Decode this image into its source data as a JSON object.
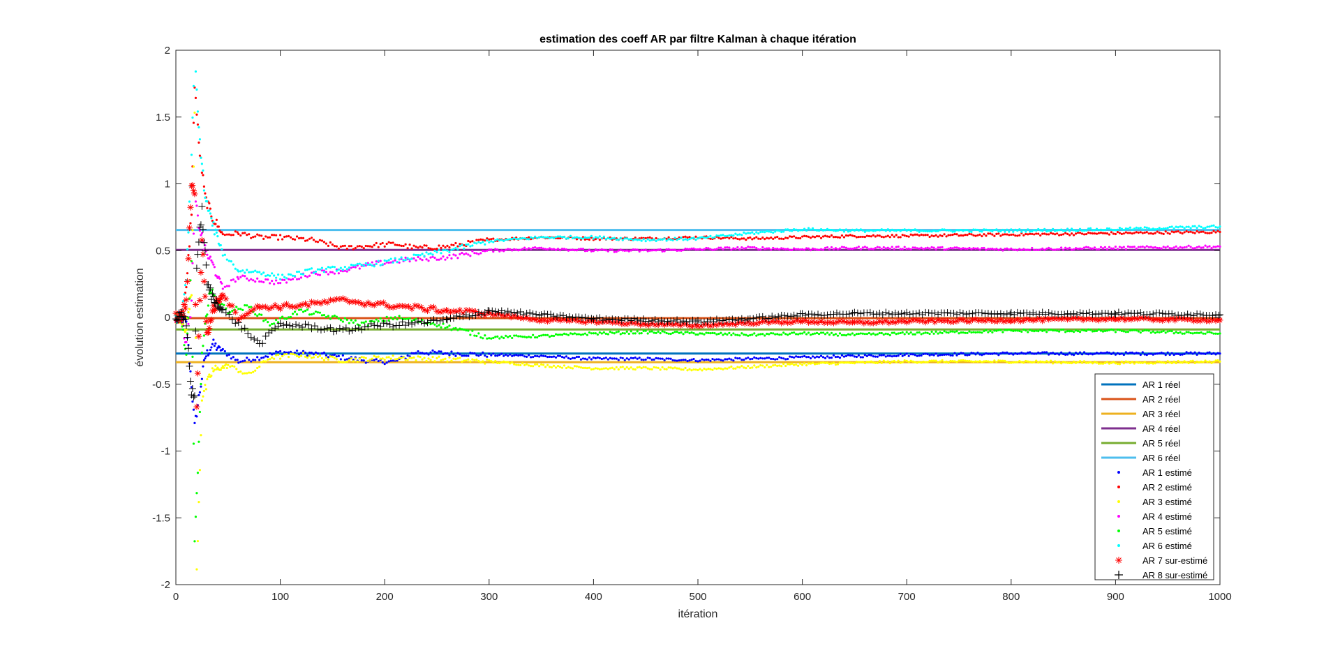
{
  "chart_data": {
    "type": "scatter",
    "title": "estimation des coeff AR par filtre Kalman à chaque itération",
    "xlabel": "itération",
    "ylabel": "évolution estimation",
    "xlim": [
      0,
      1000
    ],
    "ylim": [
      -2,
      2
    ],
    "xticks": [
      "0",
      "100",
      "200",
      "300",
      "400",
      "500",
      "600",
      "700",
      "800",
      "900",
      "1000"
    ],
    "yticks": [
      "-2",
      "-1.5",
      "-1",
      "-0.5",
      "0",
      "0.5",
      "1",
      "1.5",
      "2"
    ],
    "grid": false,
    "legend_position": "bottom-right",
    "true_series": [
      {
        "name": "AR 1 réel",
        "value": -0.27,
        "color": "#0072BD"
      },
      {
        "name": "AR 2 réel",
        "value": -0.005,
        "color": "#D95319"
      },
      {
        "name": "AR 3 réel",
        "value": -0.335,
        "color": "#EDB120"
      },
      {
        "name": "AR 4 réel",
        "value": 0.505,
        "color": "#7E2F8E"
      },
      {
        "name": "AR 5 réel",
        "value": -0.09,
        "color": "#77AC30"
      },
      {
        "name": "AR 6 réel",
        "value": 0.655,
        "color": "#4DBEEE"
      }
    ],
    "estimated_series": [
      {
        "name": "AR 1 estimé",
        "color": "#0000FF",
        "marker": "dot",
        "points": [
          [
            0,
            0
          ],
          [
            5,
            0
          ],
          [
            10,
            -0.05
          ],
          [
            15,
            -0.5
          ],
          [
            18,
            -0.82
          ],
          [
            22,
            -0.6
          ],
          [
            28,
            -0.3
          ],
          [
            35,
            -0.2
          ],
          [
            45,
            -0.25
          ],
          [
            60,
            -0.33
          ],
          [
            80,
            -0.3
          ],
          [
            100,
            -0.26
          ],
          [
            130,
            -0.27
          ],
          [
            160,
            -0.3
          ],
          [
            190,
            -0.33
          ],
          [
            210,
            -0.33
          ],
          [
            230,
            -0.26
          ],
          [
            300,
            -0.28
          ],
          [
            350,
            -0.29
          ],
          [
            400,
            -0.31
          ],
          [
            450,
            -0.31
          ],
          [
            500,
            -0.32
          ],
          [
            550,
            -0.31
          ],
          [
            600,
            -0.3
          ],
          [
            650,
            -0.29
          ],
          [
            700,
            -0.28
          ],
          [
            800,
            -0.27
          ],
          [
            900,
            -0.27
          ],
          [
            1000,
            -0.27
          ]
        ]
      },
      {
        "name": "AR 2 estimé",
        "color": "#FF0000",
        "marker": "dot",
        "points": [
          [
            0,
            0
          ],
          [
            5,
            0
          ],
          [
            10,
            0.2
          ],
          [
            15,
            0.8
          ],
          [
            18,
            1.75
          ],
          [
            22,
            1.3
          ],
          [
            28,
            0.9
          ],
          [
            35,
            0.75
          ],
          [
            45,
            0.62
          ],
          [
            60,
            0.63
          ],
          [
            80,
            0.6
          ],
          [
            100,
            0.6
          ],
          [
            130,
            0.58
          ],
          [
            160,
            0.52
          ],
          [
            190,
            0.54
          ],
          [
            210,
            0.55
          ],
          [
            230,
            0.52
          ],
          [
            260,
            0.53
          ],
          [
            300,
            0.58
          ],
          [
            350,
            0.6
          ],
          [
            400,
            0.59
          ],
          [
            450,
            0.59
          ],
          [
            500,
            0.6
          ],
          [
            550,
            0.59
          ],
          [
            600,
            0.6
          ],
          [
            650,
            0.61
          ],
          [
            700,
            0.61
          ],
          [
            800,
            0.62
          ],
          [
            900,
            0.63
          ],
          [
            1000,
            0.64
          ]
        ]
      },
      {
        "name": "AR 3 estimé",
        "color": "#FFFF00",
        "marker": "dot",
        "points": [
          [
            0,
            0
          ],
          [
            5,
            0
          ],
          [
            10,
            -0.1
          ],
          [
            15,
            0.2
          ],
          [
            18,
            1.55
          ],
          [
            20,
            -1.9
          ],
          [
            25,
            -0.6
          ],
          [
            35,
            -0.4
          ],
          [
            50,
            -0.36
          ],
          [
            70,
            -0.43
          ],
          [
            90,
            -0.3
          ],
          [
            120,
            -0.28
          ],
          [
            160,
            -0.32
          ],
          [
            200,
            -0.3
          ],
          [
            250,
            -0.31
          ],
          [
            300,
            -0.33
          ],
          [
            350,
            -0.36
          ],
          [
            400,
            -0.38
          ],
          [
            450,
            -0.38
          ],
          [
            500,
            -0.39
          ],
          [
            550,
            -0.37
          ],
          [
            600,
            -0.35
          ],
          [
            650,
            -0.34
          ],
          [
            700,
            -0.33
          ],
          [
            800,
            -0.33
          ],
          [
            900,
            -0.34
          ],
          [
            1000,
            -0.33
          ]
        ]
      },
      {
        "name": "AR 4 estimé",
        "color": "#FF00FF",
        "marker": "dot",
        "points": [
          [
            0,
            0
          ],
          [
            5,
            0
          ],
          [
            10,
            -0.2
          ],
          [
            15,
            0.1
          ],
          [
            18,
            0.9
          ],
          [
            22,
            0.7
          ],
          [
            28,
            0.5
          ],
          [
            35,
            0.4
          ],
          [
            45,
            0.22
          ],
          [
            60,
            0.3
          ],
          [
            80,
            0.28
          ],
          [
            100,
            0.26
          ],
          [
            130,
            0.33
          ],
          [
            160,
            0.35
          ],
          [
            190,
            0.4
          ],
          [
            220,
            0.43
          ],
          [
            260,
            0.45
          ],
          [
            300,
            0.5
          ],
          [
            350,
            0.52
          ],
          [
            400,
            0.5
          ],
          [
            450,
            0.5
          ],
          [
            500,
            0.51
          ],
          [
            550,
            0.52
          ],
          [
            600,
            0.51
          ],
          [
            650,
            0.52
          ],
          [
            700,
            0.52
          ],
          [
            800,
            0.51
          ],
          [
            900,
            0.52
          ],
          [
            1000,
            0.53
          ]
        ]
      },
      {
        "name": "AR 5 estimé",
        "color": "#00FF00",
        "marker": "dot",
        "points": [
          [
            0,
            0
          ],
          [
            5,
            0
          ],
          [
            10,
            -0.3
          ],
          [
            15,
            0.4
          ],
          [
            18,
            -1.64
          ],
          [
            20,
            -1.35
          ],
          [
            25,
            -0.3
          ],
          [
            32,
            0.2
          ],
          [
            40,
            0.12
          ],
          [
            50,
            0.05
          ],
          [
            70,
            0.08
          ],
          [
            90,
            -0.05
          ],
          [
            120,
            0.05
          ],
          [
            150,
            0.0
          ],
          [
            180,
            -0.05
          ],
          [
            210,
            0.0
          ],
          [
            250,
            -0.05
          ],
          [
            300,
            -0.15
          ],
          [
            350,
            -0.14
          ],
          [
            400,
            -0.12
          ],
          [
            450,
            -0.11
          ],
          [
            500,
            -0.12
          ],
          [
            550,
            -0.13
          ],
          [
            600,
            -0.12
          ],
          [
            650,
            -0.13
          ],
          [
            700,
            -0.12
          ],
          [
            800,
            -0.1
          ],
          [
            900,
            -0.1
          ],
          [
            1000,
            -0.12
          ]
        ]
      },
      {
        "name": "AR 6 estimé",
        "color": "#00FFFF",
        "marker": "dot",
        "points": [
          [
            0,
            0
          ],
          [
            5,
            0
          ],
          [
            10,
            0.3
          ],
          [
            15,
            1.2
          ],
          [
            18,
            1.98
          ],
          [
            22,
            1.4
          ],
          [
            28,
            0.9
          ],
          [
            35,
            0.7
          ],
          [
            45,
            0.48
          ],
          [
            60,
            0.35
          ],
          [
            80,
            0.34
          ],
          [
            100,
            0.3
          ],
          [
            130,
            0.35
          ],
          [
            160,
            0.37
          ],
          [
            190,
            0.4
          ],
          [
            220,
            0.44
          ],
          [
            260,
            0.5
          ],
          [
            300,
            0.57
          ],
          [
            350,
            0.6
          ],
          [
            400,
            0.6
          ],
          [
            450,
            0.58
          ],
          [
            500,
            0.59
          ],
          [
            550,
            0.63
          ],
          [
            600,
            0.66
          ],
          [
            650,
            0.65
          ],
          [
            700,
            0.65
          ],
          [
            800,
            0.65
          ],
          [
            900,
            0.66
          ],
          [
            1000,
            0.68
          ]
        ]
      },
      {
        "name": "AR 7 sur-estimé",
        "color": "#FF0000",
        "marker": "asterisk",
        "points": [
          [
            0,
            0
          ],
          [
            5,
            0
          ],
          [
            10,
            0.1
          ],
          [
            15,
            1.02
          ],
          [
            18,
            0.9
          ],
          [
            20,
            -0.65
          ],
          [
            25,
            0.6
          ],
          [
            30,
            -0.15
          ],
          [
            35,
            0.05
          ],
          [
            45,
            0.18
          ],
          [
            60,
            0.0
          ],
          [
            80,
            0.08
          ],
          [
            100,
            0.08
          ],
          [
            130,
            0.1
          ],
          [
            160,
            0.13
          ],
          [
            190,
            0.1
          ],
          [
            220,
            0.08
          ],
          [
            260,
            0.05
          ],
          [
            300,
            0.03
          ],
          [
            350,
            -0.02
          ],
          [
            400,
            -0.03
          ],
          [
            450,
            -0.05
          ],
          [
            500,
            -0.06
          ],
          [
            550,
            -0.04
          ],
          [
            600,
            -0.03
          ],
          [
            650,
            -0.04
          ],
          [
            700,
            -0.03
          ],
          [
            800,
            -0.02
          ],
          [
            900,
            -0.01
          ],
          [
            1000,
            -0.02
          ]
        ]
      },
      {
        "name": "AR 8 sur-estimé",
        "color": "#000000",
        "marker": "plus",
        "points": [
          [
            0,
            0
          ],
          [
            5,
            0
          ],
          [
            10,
            -0.05
          ],
          [
            15,
            -0.55
          ],
          [
            18,
            -0.6
          ],
          [
            20,
            0.4
          ],
          [
            25,
            0.8
          ],
          [
            30,
            0.25
          ],
          [
            35,
            0.15
          ],
          [
            45,
            0.05
          ],
          [
            60,
            -0.05
          ],
          [
            80,
            -0.2
          ],
          [
            100,
            -0.05
          ],
          [
            130,
            -0.07
          ],
          [
            160,
            -0.1
          ],
          [
            190,
            -0.06
          ],
          [
            220,
            -0.05
          ],
          [
            260,
            -0.02
          ],
          [
            300,
            0.05
          ],
          [
            350,
            0.02
          ],
          [
            400,
            -0.01
          ],
          [
            450,
            -0.02
          ],
          [
            500,
            -0.03
          ],
          [
            550,
            -0.01
          ],
          [
            600,
            0.02
          ],
          [
            650,
            0.03
          ],
          [
            700,
            0.03
          ],
          [
            800,
            0.03
          ],
          [
            900,
            0.03
          ],
          [
            1000,
            0.02
          ]
        ]
      }
    ]
  }
}
